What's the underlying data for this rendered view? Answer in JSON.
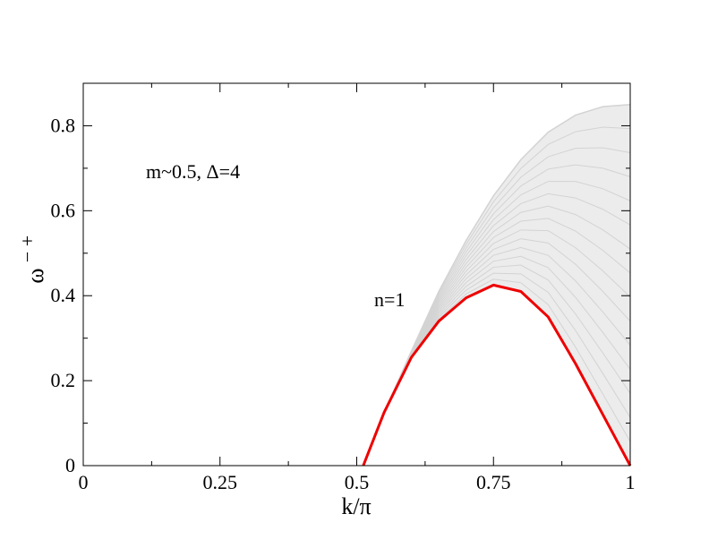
{
  "chart_data": {
    "type": "line",
    "xlabel": "k/π",
    "ylabel": "ω",
    "ylabel_superscript": "− +",
    "xlim": [
      0,
      1
    ],
    "ylim": [
      0,
      0.9
    ],
    "x_ticks": [
      0,
      0.25,
      0.5,
      0.75,
      1
    ],
    "x_tick_labels": [
      "0",
      "0.25",
      "0.5",
      "0.75",
      "1"
    ],
    "y_ticks": [
      0,
      0.2,
      0.4,
      0.6,
      0.8
    ],
    "y_tick_labels": [
      "0",
      "0.2",
      "0.4",
      "0.6",
      "0.8"
    ],
    "grid": false,
    "annotations": [
      {
        "text": "m~0.5, Δ=4",
        "x": 0.115,
        "y": 0.695
      },
      {
        "text": "n=1",
        "x": 0.53,
        "y": 0.385
      }
    ],
    "series": [
      {
        "name": "n=1",
        "color": "#ee0000",
        "x": [
          0.512,
          0.55,
          0.6,
          0.65,
          0.7,
          0.75,
          0.8,
          0.85,
          0.9,
          0.95,
          1.0
        ],
        "y": [
          0.0,
          0.125,
          0.255,
          0.34,
          0.395,
          0.425,
          0.41,
          0.35,
          0.24,
          0.12,
          0.0
        ]
      },
      {
        "color": "#d3d3d3",
        "x": [
          0.512,
          0.55,
          0.6,
          0.65,
          0.7,
          0.75,
          0.8,
          0.85,
          0.9,
          0.95,
          1.0
        ],
        "y": [
          0.0,
          0.125,
          0.27,
          0.41,
          0.53,
          0.635,
          0.72,
          0.785,
          0.825,
          0.845,
          0.85
        ]
      }
    ]
  }
}
